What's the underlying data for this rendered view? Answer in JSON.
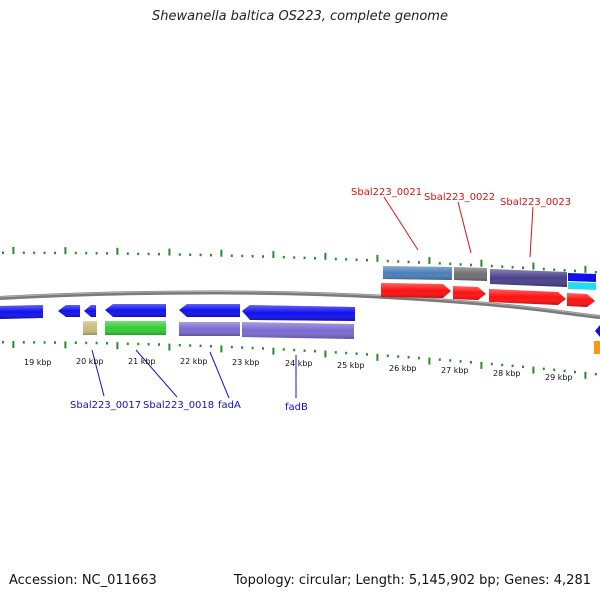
{
  "title": "Shewanella baltica OS223, complete genome",
  "footer": {
    "accession": "Accession: NC_011663",
    "summary": "Topology: circular; Length: 5,145,902 bp; Genes: 4,281"
  },
  "scale_labels": [
    "19 kbp",
    "20 kbp",
    "21 kbp",
    "22 kbp",
    "23 kbp",
    "24 kbp",
    "25 kbp",
    "26 kbp",
    "27 kbp",
    "28 kbp",
    "29 kbp"
  ],
  "top_gene_labels": [
    "Sbal223_0021",
    "Sbal223_0022",
    "Sbal223_0023"
  ],
  "bottom_gene_labels": [
    "Sbal223_0017",
    "Sbal223_0018",
    "fadA",
    "fadB"
  ],
  "colors": {
    "backbone": "#808080",
    "tick": "#2a8a2a",
    "forward_cds": "#ff1010",
    "reverse_cds": "#1010ee",
    "steel_blue": "#4a7fb8",
    "gray": "#707070",
    "slate": "#4a3f8a",
    "cyan": "#22ddee",
    "green": "#33cc33",
    "tan": "#c8bb7a",
    "lavender": "#7a6ad0",
    "orange": "#ff9900",
    "label_red": "#dd1111",
    "label_blue": "#1111cc"
  }
}
